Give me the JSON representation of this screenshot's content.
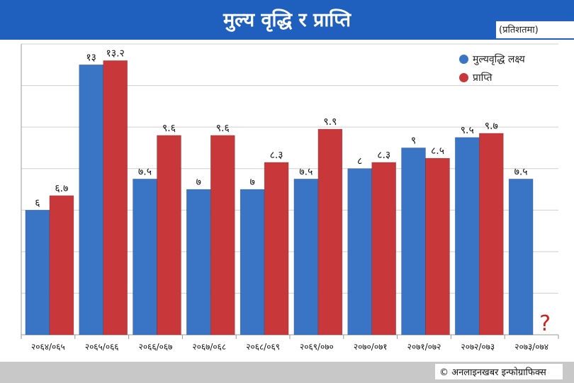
{
  "header": {
    "title": "मुल्य वृद्धि र प्राप्ति",
    "unit": "(प्रतिशतमा)"
  },
  "footer": {
    "credit": "© अनलाइनखबर इन्फोग्राफिक्स"
  },
  "colors": {
    "header_bg": "#1f5fbd",
    "target": "#3a74c4",
    "actual": "#c8383a",
    "question_mark": "#cc2222"
  },
  "chart_data": {
    "type": "bar",
    "title": "मुल्य वृद्धि र प्राप्ति",
    "xlabel": "",
    "ylabel": "",
    "ylim": [
      0,
      14
    ],
    "grid": true,
    "legend_position": "top-right",
    "categories": [
      "२०६४/०६५",
      "२०६५/०६६",
      "२०६६/०६७",
      "२०६७/०६८",
      "२०६८/०६९",
      "२०६९/०७०",
      "२०७०/०७१",
      "२०७१/०७२",
      "२०७२/०७३",
      "२०७३/०७४"
    ],
    "series": [
      {
        "name": "मुल्यवृद्धि लक्ष्य",
        "values": [
          6,
          13,
          7.5,
          7,
          7,
          7.5,
          8,
          9,
          9.5,
          7.5
        ],
        "labels": [
          "६",
          "१३",
          "७.५",
          "७",
          "७",
          "७.५",
          "८",
          "९",
          "९.५",
          "७.५"
        ]
      },
      {
        "name": "प्राप्ति",
        "values": [
          6.7,
          13.2,
          9.6,
          9.6,
          8.3,
          9.9,
          8.3,
          8.5,
          9.7,
          null
        ],
        "labels": [
          "६.७",
          "१३.२",
          "९.६",
          "९.६",
          "८.३",
          "९.९",
          "८.३",
          "८.५",
          "९.७",
          ""
        ]
      }
    ],
    "annotations": [
      "?"
    ]
  }
}
